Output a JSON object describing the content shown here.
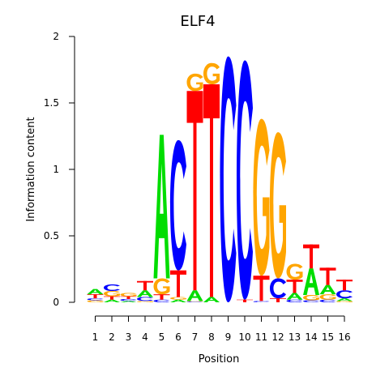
{
  "chart_data": {
    "type": "sequence-logo",
    "title": "ELF4",
    "xlabel": "Position",
    "ylabel": "Information content",
    "ylim": [
      0,
      2
    ],
    "y_ticks": [
      "0",
      "0.5",
      "1",
      "1.5",
      "2"
    ],
    "y_tick_values": [
      0,
      0.5,
      1,
      1.5,
      2
    ],
    "positions": [
      "1",
      "2",
      "3",
      "4",
      "5",
      "6",
      "7",
      "8",
      "9",
      "10",
      "11",
      "12",
      "13",
      "14",
      "15",
      "16"
    ],
    "colors": {
      "A": "#00dd00",
      "C": "#0000ff",
      "G": "#ffa500",
      "T": "#ff0000"
    },
    "stacks": [
      [
        [
          "G",
          0.015
        ],
        [
          "C",
          0.015
        ],
        [
          "T",
          0.03
        ],
        [
          "A",
          0.04
        ]
      ],
      [
        [
          "A",
          0.02
        ],
        [
          "T",
          0.025
        ],
        [
          "G",
          0.04
        ],
        [
          "C",
          0.05
        ]
      ],
      [
        [
          "A",
          0.01
        ],
        [
          "C",
          0.015
        ],
        [
          "T",
          0.02
        ],
        [
          "G",
          0.025
        ]
      ],
      [
        [
          "G",
          0.01
        ],
        [
          "C",
          0.03
        ],
        [
          "A",
          0.05
        ],
        [
          "T",
          0.07
        ]
      ],
      [
        [
          "C",
          0.02
        ],
        [
          "T",
          0.04
        ],
        [
          "G",
          0.12
        ],
        [
          "A",
          1.08
        ]
      ],
      [
        [
          "A",
          0.02
        ],
        [
          "G",
          0.02
        ],
        [
          "T",
          0.2
        ],
        [
          "C",
          0.98
        ]
      ],
      [
        [
          "C",
          0.005
        ],
        [
          "G",
          0.005
        ],
        [
          "A",
          0.08
        ],
        [
          "T",
          1.5
        ],
        [
          "G",
          0.13
        ]
      ],
      [
        [
          "A",
          0.04
        ],
        [
          "T",
          1.6
        ],
        [
          "G",
          0.16
        ]
      ],
      [
        [
          "C",
          1.85
        ]
      ],
      [
        [
          "T",
          0.02
        ],
        [
          "C",
          1.8
        ]
      ],
      [
        [
          "C",
          0.01
        ],
        [
          "T",
          0.19
        ],
        [
          "G",
          1.18
        ]
      ],
      [
        [
          "T",
          0.03
        ],
        [
          "C",
          0.15
        ],
        [
          "G",
          1.1
        ]
      ],
      [
        [
          "C",
          0.02
        ],
        [
          "A",
          0.05
        ],
        [
          "T",
          0.1
        ],
        [
          "G",
          0.12
        ]
      ],
      [
        [
          "C",
          0.015
        ],
        [
          "G",
          0.04
        ],
        [
          "A",
          0.2
        ],
        [
          "T",
          0.18
        ]
      ],
      [
        [
          "C",
          0.02
        ],
        [
          "G",
          0.04
        ],
        [
          "A",
          0.07
        ],
        [
          "T",
          0.13
        ]
      ],
      [
        [
          "G",
          0.01
        ],
        [
          "A",
          0.02
        ],
        [
          "C",
          0.06
        ],
        [
          "T",
          0.08
        ]
      ]
    ]
  }
}
